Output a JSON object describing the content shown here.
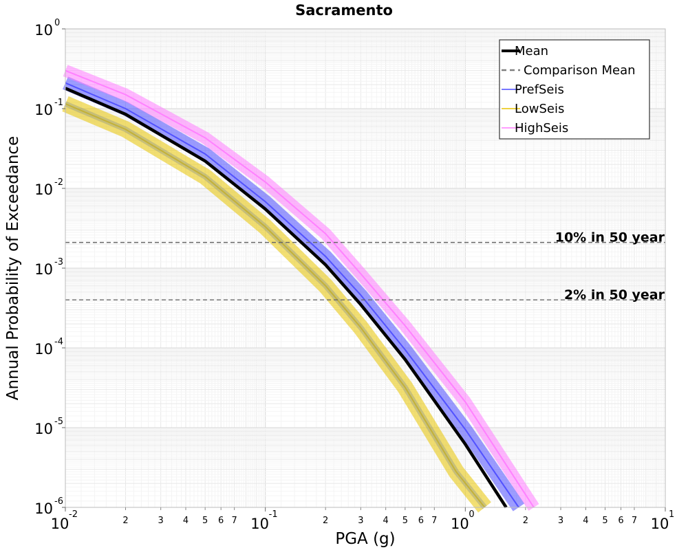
{
  "chart_data": {
    "type": "line",
    "title": "Sacramento",
    "xlabel": "PGA (g)",
    "ylabel": "Annual Probability of Exceedance",
    "x_scale": "log",
    "y_scale": "log",
    "xlim": [
      0.01,
      10
    ],
    "ylim": [
      1e-06,
      1
    ],
    "grid": true,
    "legend_placement": "top-right",
    "x_major_ticks": [
      {
        "base": "10",
        "exp": "-2"
      },
      {
        "base": "10",
        "exp": "-1"
      },
      {
        "base": "10",
        "exp": "0"
      },
      {
        "base": "10",
        "exp": "1"
      }
    ],
    "y_major_ticks": [
      {
        "base": "10",
        "exp": "0"
      },
      {
        "base": "10",
        "exp": "-1"
      },
      {
        "base": "10",
        "exp": "-2"
      },
      {
        "base": "10",
        "exp": "-3"
      },
      {
        "base": "10",
        "exp": "-4"
      },
      {
        "base": "10",
        "exp": "-5"
      },
      {
        "base": "10",
        "exp": "-6"
      }
    ],
    "x_minor_tick_labels": [
      "2",
      "3",
      "4",
      "5",
      "6",
      "7"
    ],
    "series": [
      {
        "name": "Mean",
        "color": "#000000",
        "style": "solid",
        "x": [
          0.01,
          0.02,
          0.05,
          0.1,
          0.2,
          0.3,
          0.5,
          1.0,
          1.6
        ],
        "y": [
          0.18,
          0.085,
          0.022,
          0.0055,
          0.0011,
          0.00035,
          7.17e-05,
          6.2e-06,
          1e-06
        ]
      },
      {
        "name": "Comparison Mean",
        "color": "#808080",
        "style": "dashed",
        "x": [
          0.01,
          0.02,
          0.05,
          0.1,
          0.2,
          0.3,
          0.5,
          1.0,
          1.6
        ],
        "y": [
          0.18,
          0.085,
          0.022,
          0.0055,
          0.0011,
          0.00035,
          7.17e-05,
          6.2e-06,
          1e-06
        ]
      },
      {
        "name": "PrefSeis",
        "color": "#4a4aff",
        "style": "band",
        "x": [
          0.01,
          0.02,
          0.05,
          0.1,
          0.2,
          0.3,
          0.5,
          1.0,
          1.85
        ],
        "y": [
          0.21,
          0.1,
          0.027,
          0.0068,
          0.0014,
          0.00046,
          9.5e-05,
          9.5e-06,
          1e-06
        ]
      },
      {
        "name": "LowSeis",
        "color": "#e8c400",
        "style": "band",
        "x": [
          0.01,
          0.02,
          0.05,
          0.1,
          0.2,
          0.3,
          0.5,
          0.9,
          1.25
        ],
        "y": [
          0.115,
          0.055,
          0.014,
          0.0033,
          0.0006,
          0.00018,
          3.2e-05,
          2.8e-06,
          1e-06
        ]
      },
      {
        "name": "HighSeis",
        "color": "#ff7bff",
        "style": "band",
        "x": [
          0.01,
          0.02,
          0.05,
          0.1,
          0.2,
          0.3,
          0.5,
          1.0,
          2.2
        ],
        "y": [
          0.3,
          0.15,
          0.043,
          0.012,
          0.0027,
          0.00085,
          0.00019,
          2.1e-05,
          1e-06
        ]
      }
    ],
    "reference_lines": [
      {
        "label": "10% in 50 year",
        "y": 0.0021
      },
      {
        "label": "2% in 50 year",
        "y": 0.0004
      }
    ]
  }
}
